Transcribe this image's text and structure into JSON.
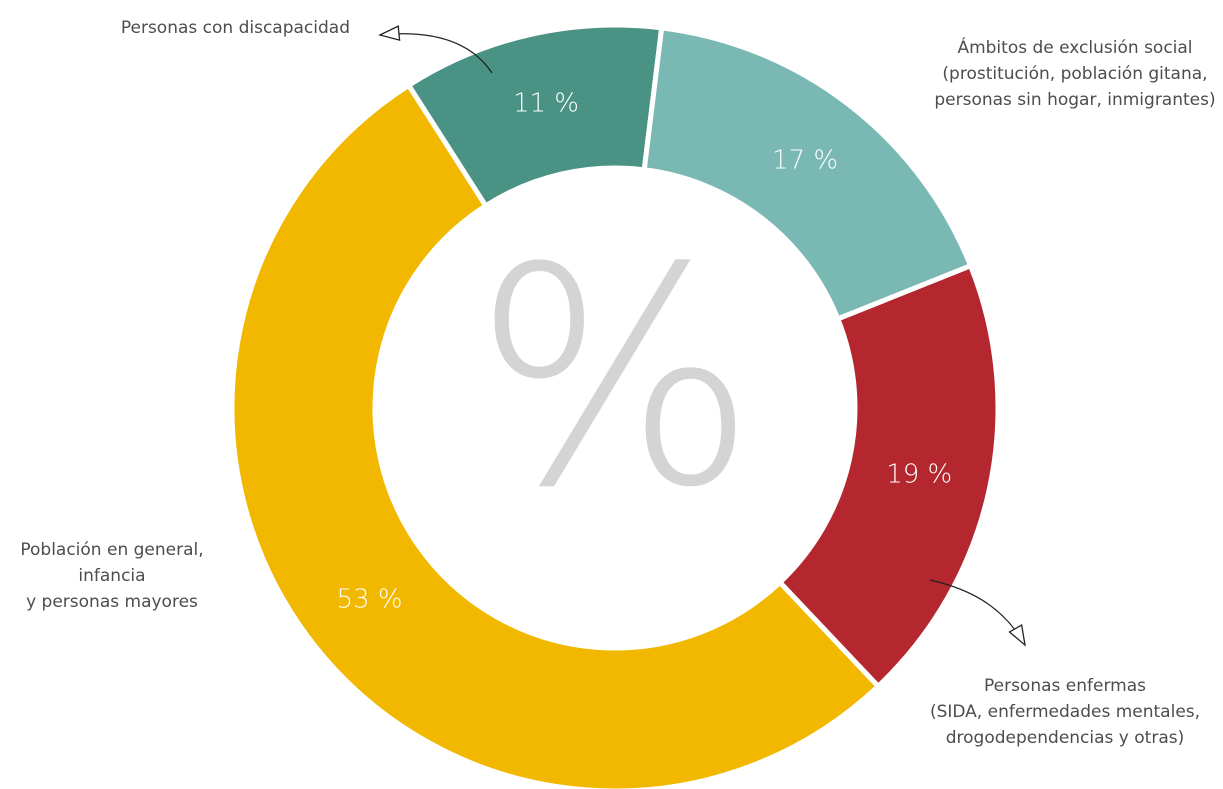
{
  "chart_data": {
    "type": "donut",
    "categories": [
      [
        "Personas con discapacidad"
      ],
      [
        "Ámbitos de exclusión social",
        "(prostitución, población gitana,",
        "personas sin hogar, inmigrantes)"
      ],
      [
        "Personas enfermas",
        "(SIDA, enfermedades mentales,",
        "drogodependencias y otras)"
      ],
      [
        "Población en general,",
        "infancia",
        "y personas mayores"
      ]
    ],
    "values": [
      11,
      17,
      19,
      53
    ],
    "value_labels": [
      "11 %",
      "17 %",
      "19 %",
      "53 %"
    ],
    "colors": [
      "#4a9384",
      "#7ab9b3",
      "#b5272f",
      "#f2b800"
    ],
    "center_label": "%"
  }
}
